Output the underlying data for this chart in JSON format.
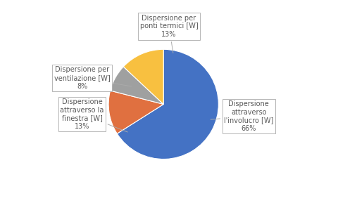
{
  "slices": [
    66,
    13,
    8,
    13
  ],
  "colors": [
    "#4472C4",
    "#E07040",
    "#9FA0A0",
    "#F8C040"
  ],
  "legend_labels": [
    "Dispersione attraverso l'involucro [W]",
    "Dispersione attraverso la finestra [W]",
    "Dispersione per ventilazione [W]",
    "Dispersione per ponti termici [W]"
  ],
  "legend_colors": [
    "#4472C4",
    "#E07040",
    "#9FA0A0",
    "#F8C040"
  ],
  "background_color": "#FFFFFF",
  "startangle": 90,
  "label_fontsize": 7.0,
  "label_color": "#595959",
  "percent_color": "#595959",
  "involucro_label": "Dispersione\nattraverso\nl'involucro [W]\n66%",
  "finestra_label": "Dispersione\nattraverso la\nfinestra [W]\n13%",
  "ventilazione_label": "Dispersione per\nventilazione [W]\n8%",
  "ponti_label": "Dispersione per\nponti termici [W]\n13%"
}
